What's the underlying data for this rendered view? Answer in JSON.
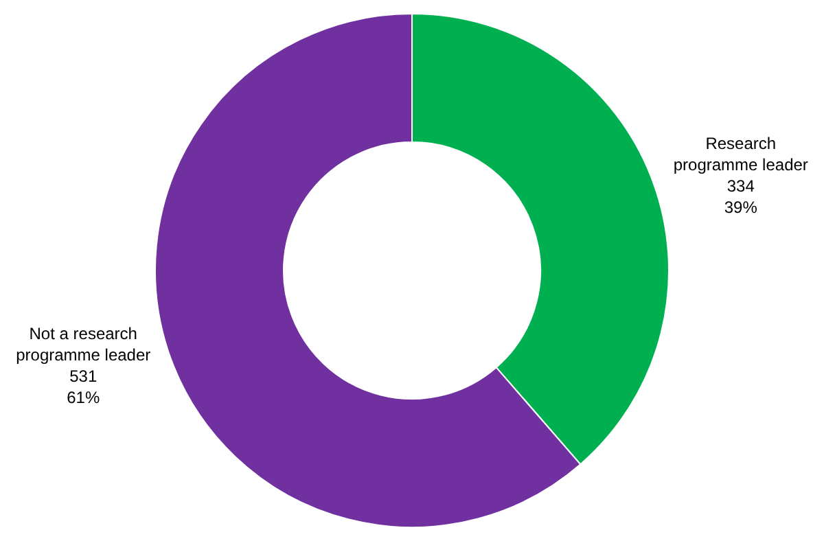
{
  "chart_data": {
    "type": "donut",
    "categories": [
      "Research programme leader",
      "Not a research programme leader"
    ],
    "values": [
      334,
      531
    ],
    "colors": [
      "#00b050",
      "#7030a0"
    ],
    "value_labels": [
      "334\n39%",
      "531\n61%"
    ],
    "legend": false
  }
}
